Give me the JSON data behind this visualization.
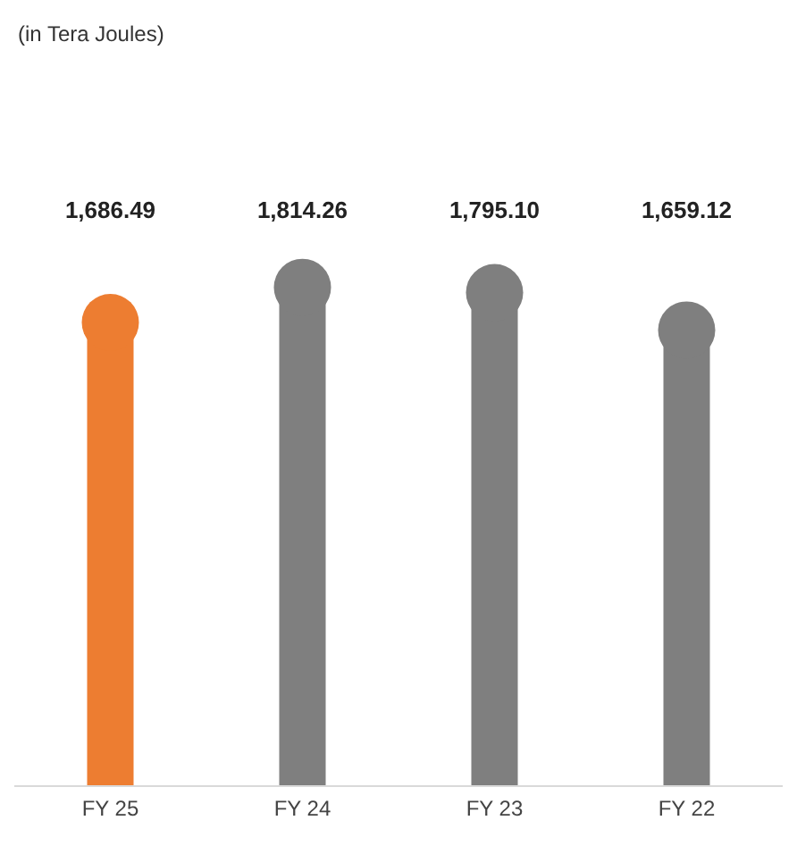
{
  "chart_data": {
    "type": "lollipop",
    "subtitle": "(in Tera Joules)",
    "categories": [
      "FY 25",
      "FY 24",
      "FY 23",
      "FY 22"
    ],
    "values": [
      1686.49,
      1814.26,
      1795.1,
      1659.12
    ],
    "value_labels": [
      "1,686.49",
      "1,814.26",
      "1,795.10",
      "1,659.12"
    ],
    "colors": [
      "#ed7d31",
      "#7f7f7f",
      "#7f7f7f",
      "#7f7f7f"
    ]
  }
}
